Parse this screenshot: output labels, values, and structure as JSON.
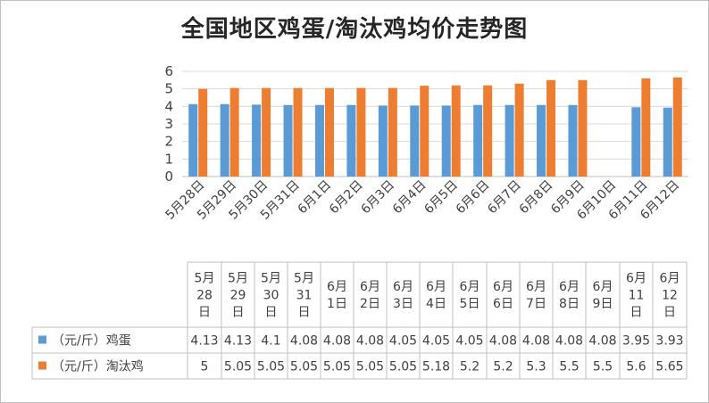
{
  "chart_data": {
    "type": "bar",
    "title": "全国地区鸡蛋/淘汰鸡均价走势图",
    "categories": [
      "5月28日",
      "5月29日",
      "5月30日",
      "5月31日",
      "6月1日",
      "6月2日",
      "6月3日",
      "6月4日",
      "6月5日",
      "6月6日",
      "6月7日",
      "6月8日",
      "6月9日",
      "6月10日",
      "6月11日",
      "6月12日"
    ],
    "series": [
      {
        "name": "（元/斤）鸡蛋",
        "color": "#5b9bd5",
        "values": [
          4.13,
          4.13,
          4.1,
          4.08,
          4.08,
          4.08,
          4.05,
          4.05,
          4.05,
          4.08,
          4.08,
          4.08,
          4.08,
          null,
          3.95,
          3.93
        ]
      },
      {
        "name": "（元/斤）淘汰鸡",
        "color": "#ed7d31",
        "values": [
          5,
          5.05,
          5.05,
          5.05,
          5.05,
          5.05,
          5.05,
          5.18,
          5.2,
          5.2,
          5.3,
          5.5,
          5.5,
          null,
          5.6,
          5.65
        ]
      }
    ],
    "ylim": [
      0,
      6
    ],
    "yticks": [
      0,
      1,
      2,
      3,
      4,
      5,
      6
    ],
    "grid": true,
    "legend": "data-table",
    "table_headers": [
      [
        "5月",
        "28",
        "日"
      ],
      [
        "5月",
        "29",
        "日"
      ],
      [
        "5月",
        "30",
        "日"
      ],
      [
        "5月",
        "31",
        "日"
      ],
      [
        "6月",
        "1日"
      ],
      [
        "6月",
        "2日"
      ],
      [
        "6月",
        "3日"
      ],
      [
        "6月",
        "4日"
      ],
      [
        "6月",
        "5日"
      ],
      [
        "6月",
        "6日"
      ],
      [
        "6月",
        "7日"
      ],
      [
        "6月",
        "8日"
      ],
      [
        "6月",
        "9日"
      ],
      [
        "6月",
        "11",
        "日"
      ],
      [
        "6月",
        "12",
        "日"
      ]
    ],
    "table_rows": [
      [
        "4.13",
        "4.13",
        "4.1",
        "4.08",
        "4.08",
        "4.08",
        "4.05",
        "4.05",
        "4.05",
        "4.08",
        "4.08",
        "4.08",
        "4.08",
        "3.95",
        "3.93"
      ],
      [
        "5",
        "5.05",
        "5.05",
        "5.05",
        "5.05",
        "5.05",
        "5.05",
        "5.18",
        "5.2",
        "5.2",
        "5.3",
        "5.5",
        "5.5",
        "5.6",
        "5.65"
      ]
    ]
  }
}
